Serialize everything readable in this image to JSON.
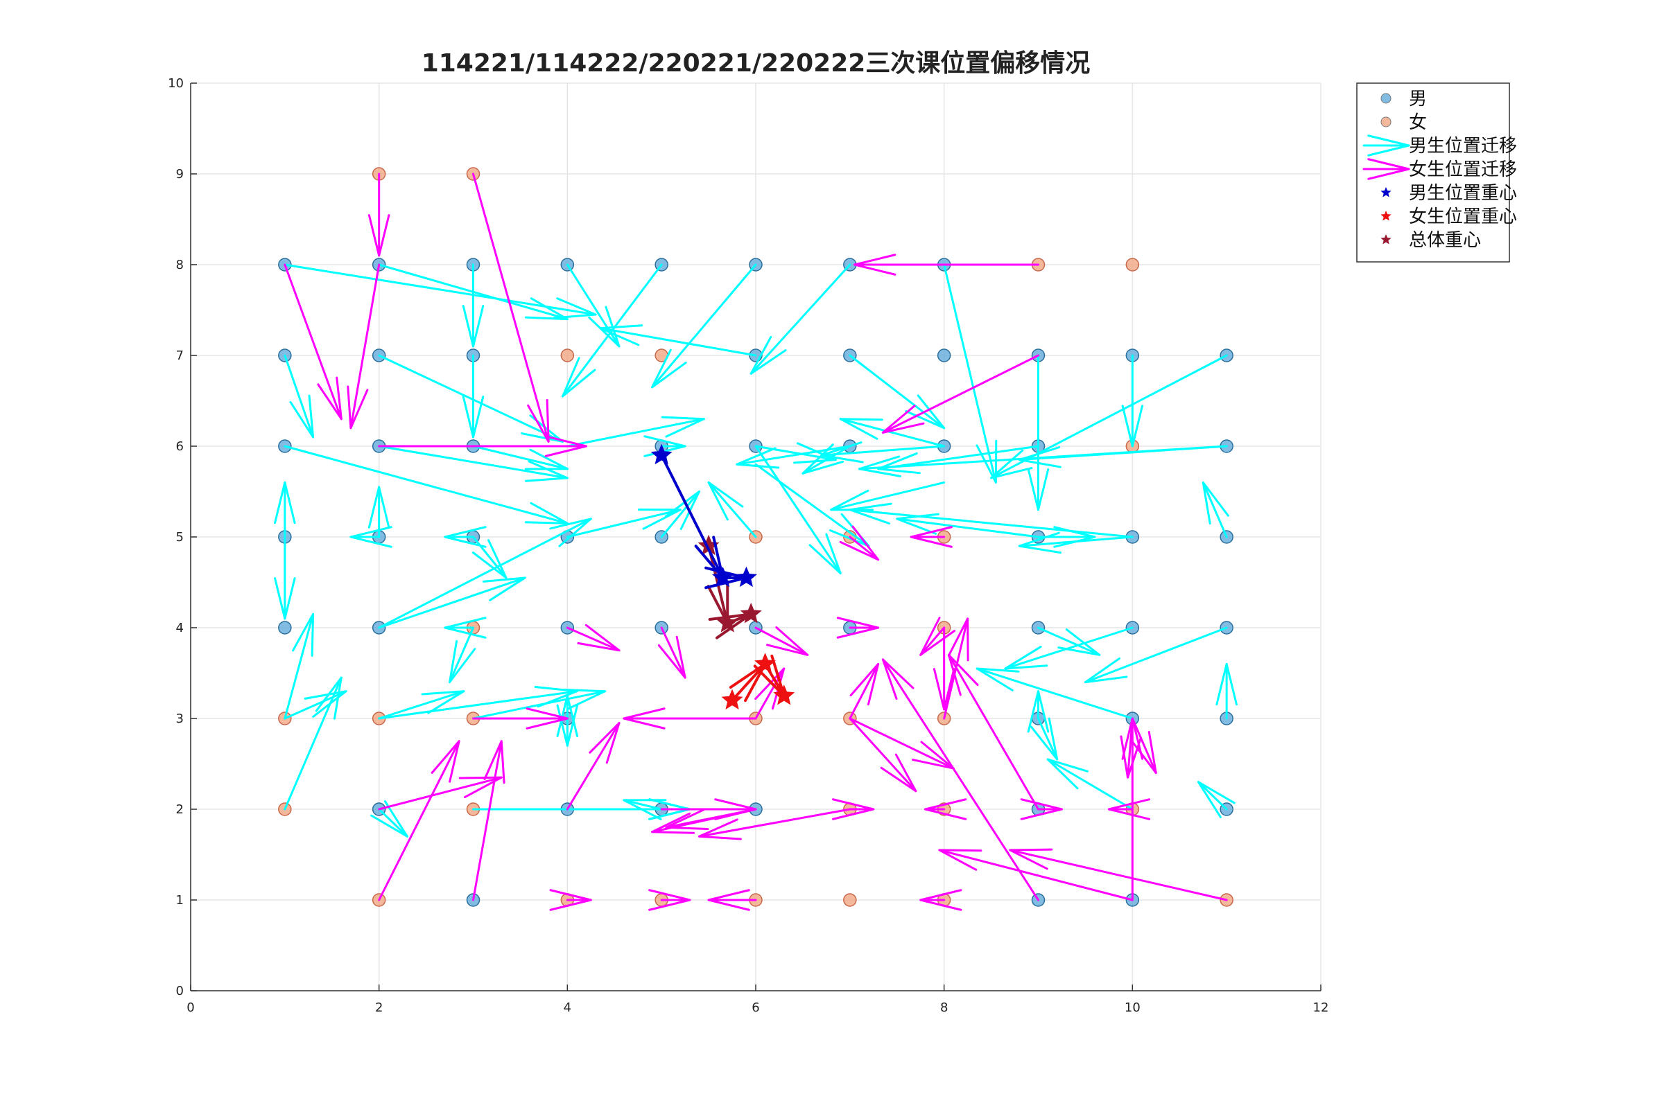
{
  "chart_data": {
    "type": "scatter",
    "title": "114221/114222/220221/220222三次课位置偏移情况",
    "xlabel": "",
    "ylabel": "",
    "xlim": [
      0,
      12
    ],
    "ylim": [
      0,
      10
    ],
    "xticks": [
      "0",
      "2",
      "4",
      "6",
      "8",
      "10",
      "12"
    ],
    "yticks": [
      "0",
      "1",
      "2",
      "3",
      "4",
      "5",
      "6",
      "7",
      "8",
      "9",
      "10"
    ],
    "grid": true,
    "legend_position": "outside-top-right",
    "legend": [
      {
        "label": "男",
        "kind": "marker",
        "color": "#5aa6d8"
      },
      {
        "label": "女",
        "kind": "marker",
        "color": "#f0a07c"
      },
      {
        "label": "男生位置迁移",
        "kind": "arrow",
        "color": "#00ffff"
      },
      {
        "label": "女生位置迁移",
        "kind": "arrow",
        "color": "#ff00ff"
      },
      {
        "label": "男生位置重心",
        "kind": "star",
        "color": "#0000cc"
      },
      {
        "label": "女生位置重心",
        "kind": "star",
        "color": "#ee1111"
      },
      {
        "label": "总体重心",
        "kind": "star",
        "color": "#991830"
      }
    ],
    "colors": {
      "male_marker": "#5aa6d8",
      "male_marker_edge": "#2a6f9c",
      "female_marker": "#f0a07c",
      "female_marker_edge": "#c8684a",
      "male_arrow": "#00ffff",
      "female_arrow": "#ff00ff",
      "male_centroid": "#0000cc",
      "female_centroid": "#ee1111",
      "overall_centroid": "#991830"
    },
    "male_points": [
      [
        1,
        8
      ],
      [
        2,
        8
      ],
      [
        3,
        8
      ],
      [
        4,
        8
      ],
      [
        5,
        8
      ],
      [
        6,
        8
      ],
      [
        7,
        8
      ],
      [
        8,
        8
      ],
      [
        1,
        7
      ],
      [
        2,
        7
      ],
      [
        3,
        7
      ],
      [
        6,
        7
      ],
      [
        7,
        7
      ],
      [
        8,
        7
      ],
      [
        9,
        7
      ],
      [
        10,
        7
      ],
      [
        11,
        7
      ],
      [
        1,
        6
      ],
      [
        2,
        6
      ],
      [
        3,
        6
      ],
      [
        5,
        6
      ],
      [
        6,
        6
      ],
      [
        7,
        6
      ],
      [
        8,
        6
      ],
      [
        9,
        6
      ],
      [
        11,
        6
      ],
      [
        1,
        5
      ],
      [
        2,
        5
      ],
      [
        3,
        5
      ],
      [
        4,
        5
      ],
      [
        5,
        5
      ],
      [
        9,
        5
      ],
      [
        10,
        5
      ],
      [
        11,
        5
      ],
      [
        1,
        4
      ],
      [
        2,
        4
      ],
      [
        4,
        4
      ],
      [
        5,
        4
      ],
      [
        6,
        4
      ],
      [
        7,
        4
      ],
      [
        9,
        4
      ],
      [
        10,
        4
      ],
      [
        11,
        4
      ],
      [
        4,
        3
      ],
      [
        9,
        3
      ],
      [
        10,
        3
      ],
      [
        11,
        3
      ],
      [
        2,
        2
      ],
      [
        4,
        2
      ],
      [
        5,
        2
      ],
      [
        6,
        2
      ],
      [
        9,
        2
      ],
      [
        11,
        2
      ],
      [
        3,
        1
      ],
      [
        9,
        1
      ],
      [
        10,
        1
      ]
    ],
    "female_points": [
      [
        2,
        9
      ],
      [
        3,
        9
      ],
      [
        9,
        8
      ],
      [
        10,
        8
      ],
      [
        4,
        7
      ],
      [
        5,
        7
      ],
      [
        10,
        6
      ],
      [
        6,
        5
      ],
      [
        7,
        5
      ],
      [
        8,
        5
      ],
      [
        3,
        4
      ],
      [
        8,
        4
      ],
      [
        1,
        3
      ],
      [
        2,
        3
      ],
      [
        3,
        3
      ],
      [
        6,
        3
      ],
      [
        7,
        3
      ],
      [
        8,
        3
      ],
      [
        1,
        2
      ],
      [
        3,
        2
      ],
      [
        7,
        2
      ],
      [
        8,
        2
      ],
      [
        10,
        2
      ],
      [
        2,
        1
      ],
      [
        4,
        1
      ],
      [
        5,
        1
      ],
      [
        6,
        1
      ],
      [
        7,
        1
      ],
      [
        8,
        1
      ],
      [
        11,
        1
      ]
    ],
    "male_migrations": [
      [
        1,
        8,
        4.3,
        7.45
      ],
      [
        2,
        8,
        4.0,
        7.4
      ],
      [
        3,
        8,
        3.0,
        7.1
      ],
      [
        4,
        8,
        4.55,
        7.1
      ],
      [
        5,
        8,
        3.95,
        6.55
      ],
      [
        6,
        8,
        4.9,
        6.65
      ],
      [
        7,
        8,
        5.95,
        6.8
      ],
      [
        8,
        8,
        8.55,
        5.6
      ],
      [
        1,
        7,
        1.3,
        6.1
      ],
      [
        2,
        7,
        3.95,
        6.05
      ],
      [
        3,
        7,
        3.0,
        6.1
      ],
      [
        6,
        7,
        4.35,
        7.3
      ],
      [
        7,
        7,
        8.0,
        6.2
      ],
      [
        9,
        7,
        9.0,
        5.3
      ],
      [
        10,
        7,
        10.0,
        6.0
      ],
      [
        11,
        7,
        8.5,
        5.65
      ],
      [
        1,
        6,
        4.0,
        5.15
      ],
      [
        2,
        6,
        4.0,
        5.65
      ],
      [
        3,
        6,
        4.0,
        5.75
      ],
      [
        4,
        6,
        5.45,
        6.3
      ],
      [
        5,
        6,
        5.25,
        6.0
      ],
      [
        8,
        6,
        6.9,
        6.3
      ],
      [
        9,
        6,
        7.3,
        5.75
      ],
      [
        11,
        6,
        8.8,
        5.85
      ],
      [
        1,
        5,
        1.0,
        5.6
      ],
      [
        1,
        5,
        1.0,
        4.1
      ],
      [
        2,
        5,
        2.0,
        5.55
      ],
      [
        2,
        5,
        1.7,
        5.0
      ],
      [
        3,
        5,
        2.7,
        5.0
      ],
      [
        3,
        5,
        3.35,
        4.55
      ],
      [
        4,
        5,
        5.2,
        5.3
      ],
      [
        5,
        5,
        5.4,
        5.5
      ],
      [
        9,
        5,
        9.6,
        5.0
      ],
      [
        10,
        5,
        7.0,
        5.3
      ],
      [
        11,
        5,
        10.75,
        5.6
      ],
      [
        2,
        4,
        3.55,
        4.55
      ],
      [
        2,
        4,
        4.25,
        5.2
      ],
      [
        3,
        4,
        2.7,
        4.0
      ],
      [
        3,
        4,
        2.75,
        3.4
      ],
      [
        1,
        3,
        1.3,
        4.15
      ],
      [
        1,
        2,
        1.6,
        3.45
      ],
      [
        1,
        3,
        1.65,
        3.3
      ],
      [
        2,
        3,
        2.9,
        3.3
      ],
      [
        2,
        3,
        4.1,
        3.3
      ],
      [
        3,
        3,
        4.4,
        3.3
      ],
      [
        4,
        3,
        4.0,
        3.25
      ],
      [
        4,
        3,
        4.0,
        2.7
      ],
      [
        9,
        3,
        9.0,
        3.3
      ],
      [
        9,
        3,
        9.2,
        2.55
      ],
      [
        10,
        3,
        8.35,
        3.55
      ],
      [
        10,
        2,
        9.1,
        2.55
      ],
      [
        11,
        3,
        11.0,
        3.6
      ],
      [
        11,
        4,
        9.5,
        3.4
      ],
      [
        10,
        4,
        8.65,
        3.55
      ],
      [
        9,
        4,
        9.65,
        3.7
      ],
      [
        11,
        2,
        10.7,
        2.3
      ],
      [
        2,
        2,
        2.3,
        1.7
      ],
      [
        3,
        2,
        5.3,
        2.0
      ],
      [
        4,
        2,
        5.3,
        2.0
      ],
      [
        5,
        2,
        4.6,
        2.1
      ],
      [
        7,
        6,
        6.5,
        5.7
      ],
      [
        6,
        5,
        5.5,
        5.6
      ],
      [
        6,
        6,
        6.85,
        5.85
      ],
      [
        6,
        6,
        6.9,
        4.6
      ],
      [
        6,
        5.8,
        7.2,
        4.9
      ],
      [
        8,
        5.6,
        6.8,
        5.3
      ],
      [
        9,
        5,
        7.5,
        5.2
      ],
      [
        11,
        6,
        7.1,
        5.75
      ],
      [
        8,
        6,
        6.7,
        5.9
      ],
      [
        7,
        6,
        5.8,
        5.8
      ],
      [
        10,
        5,
        8.8,
        4.9
      ]
    ],
    "female_migrations": [
      [
        2,
        9,
        2.0,
        8.1
      ],
      [
        3,
        9,
        3.8,
        6.05
      ],
      [
        1,
        8,
        1.6,
        6.3
      ],
      [
        2,
        8,
        1.7,
        6.2
      ],
      [
        2,
        6,
        4.2,
        6.0
      ],
      [
        9,
        8,
        7.05,
        8.0
      ],
      [
        9,
        7,
        7.35,
        6.15
      ],
      [
        3,
        3,
        4.0,
        3.0
      ],
      [
        6,
        3,
        4.6,
        3.0
      ],
      [
        4,
        4,
        4.55,
        3.75
      ],
      [
        5,
        4,
        5.25,
        3.45
      ],
      [
        6,
        4,
        6.55,
        3.7
      ],
      [
        7,
        4,
        7.3,
        4.0
      ],
      [
        7,
        5,
        7.3,
        4.75
      ],
      [
        8,
        5,
        7.65,
        5.0
      ],
      [
        8,
        4,
        7.75,
        3.7
      ],
      [
        8,
        4,
        8.0,
        3.1
      ],
      [
        7,
        3,
        7.3,
        3.6
      ],
      [
        7,
        3,
        8.1,
        2.45
      ],
      [
        7,
        3,
        7.7,
        2.2
      ],
      [
        8,
        3,
        8.25,
        4.1
      ],
      [
        9,
        2,
        8.05,
        3.7
      ],
      [
        9,
        2,
        9.25,
        2.0
      ],
      [
        10,
        2,
        9.75,
        2.0
      ],
      [
        10,
        3,
        10.25,
        2.4
      ],
      [
        10,
        3,
        9.95,
        2.35
      ],
      [
        10,
        1,
        10.0,
        3.0
      ],
      [
        11,
        1,
        8.7,
        1.55
      ],
      [
        10,
        1,
        7.95,
        1.55
      ],
      [
        9,
        1,
        7.35,
        3.65
      ],
      [
        2,
        1,
        2.85,
        2.75
      ],
      [
        3,
        1,
        3.3,
        2.75
      ],
      [
        2,
        2,
        3.3,
        2.35
      ],
      [
        4,
        2,
        4.55,
        2.95
      ],
      [
        5,
        2,
        6.0,
        2.0
      ],
      [
        6,
        2,
        4.9,
        1.75
      ],
      [
        7,
        2,
        5.4,
        1.7
      ],
      [
        8,
        2,
        7.8,
        2.0
      ],
      [
        7,
        2,
        7.25,
        2.0
      ],
      [
        6,
        1,
        5.5,
        1.0
      ],
      [
        5,
        1,
        5.3,
        1.0
      ],
      [
        4,
        1,
        4.25,
        1.0
      ],
      [
        8,
        1,
        7.75,
        1.0
      ],
      [
        6,
        2,
        5.05,
        1.8
      ],
      [
        6,
        3,
        6.3,
        3.55
      ]
    ],
    "male_centroid_path": [
      [
        5.0,
        5.9
      ],
      [
        5.65,
        4.55
      ],
      [
        5.9,
        4.55
      ]
    ],
    "female_centroid_path": [
      [
        5.75,
        3.2
      ],
      [
        6.1,
        3.6
      ],
      [
        6.3,
        3.25
      ]
    ],
    "overall_centroid_path": [
      [
        5.5,
        4.9
      ],
      [
        5.7,
        4.05
      ],
      [
        5.95,
        4.15
      ]
    ]
  }
}
